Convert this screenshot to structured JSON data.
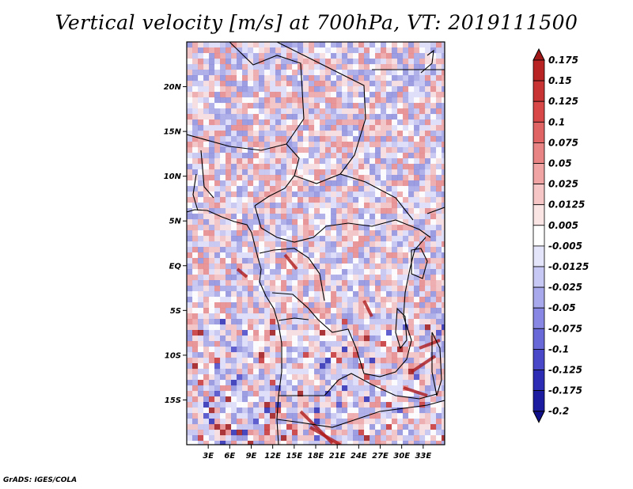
{
  "title": "Vertical velocity [m/s] at 700hPa, VT: 2019111500",
  "credit": "GrADS: IGES/COLA",
  "map": {
    "lon_range": [
      0,
      36
    ],
    "lat_range": [
      -20,
      25
    ],
    "lat_ticks": [
      {
        "value": 20,
        "label": "20N"
      },
      {
        "value": 15,
        "label": "15N"
      },
      {
        "value": 10,
        "label": "10N"
      },
      {
        "value": 5,
        "label": "5N"
      },
      {
        "value": 0,
        "label": "EQ"
      },
      {
        "value": -5,
        "label": "5S"
      },
      {
        "value": -10,
        "label": "10S"
      },
      {
        "value": -15,
        "label": "15S"
      }
    ],
    "lon_ticks": [
      {
        "value": 3,
        "label": "3E"
      },
      {
        "value": 6,
        "label": "6E"
      },
      {
        "value": 9,
        "label": "9E"
      },
      {
        "value": 12,
        "label": "12E"
      },
      {
        "value": 15,
        "label": "15E"
      },
      {
        "value": 18,
        "label": "18E"
      },
      {
        "value": 21,
        "label": "21E"
      },
      {
        "value": 24,
        "label": "24E"
      },
      {
        "value": 27,
        "label": "27E"
      },
      {
        "value": 30,
        "label": "30E"
      },
      {
        "value": 33,
        "label": "33E"
      }
    ]
  },
  "colorbar": {
    "levels": [
      "0.175",
      "0.15",
      "0.125",
      "0.1",
      "0.075",
      "0.05",
      "0.025",
      "0.0125",
      "0.005",
      "-0.005",
      "-0.0125",
      "-0.025",
      "-0.05",
      "-0.075",
      "-0.1",
      "-0.125",
      "-0.175",
      "-0.2"
    ],
    "colors": [
      "#a01818",
      "#b82424",
      "#c83434",
      "#d84848",
      "#e06464",
      "#e88484",
      "#f0a4a4",
      "#f6c6c6",
      "#fbe4e4",
      "#ffffff",
      "#e4e4fb",
      "#c8c8f4",
      "#a8a8ec",
      "#8888e4",
      "#6868d8",
      "#4848c8",
      "#2c2cb4",
      "#1c1ca0",
      "#10108a"
    ]
  }
}
